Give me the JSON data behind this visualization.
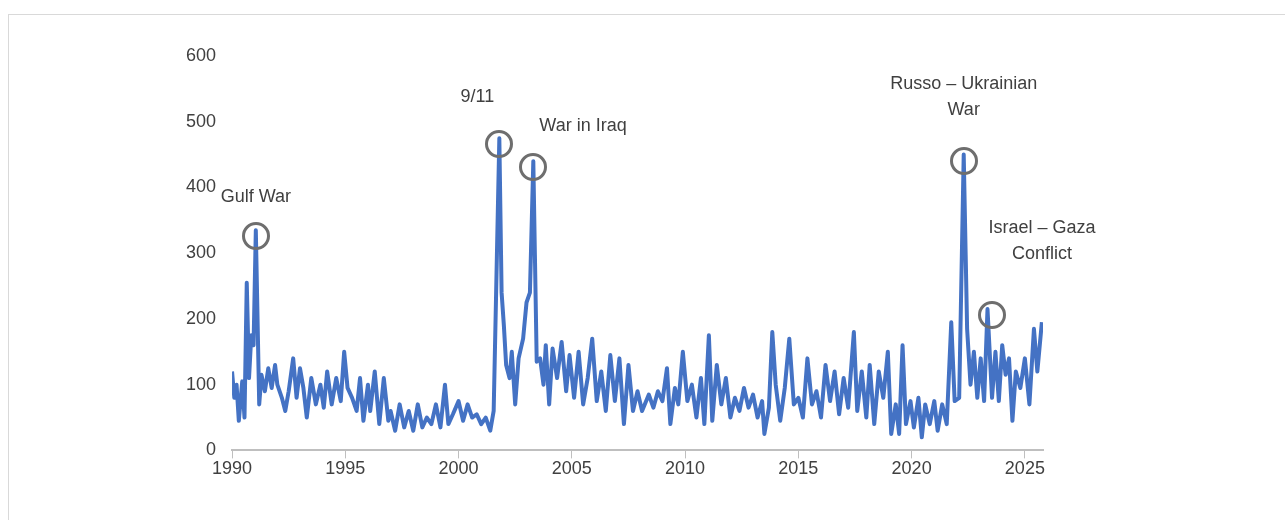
{
  "chart_data": {
    "type": "line",
    "x": [
      1990.0,
      1990.1,
      1990.2,
      1990.3,
      1990.45,
      1990.55,
      1990.65,
      1990.75,
      1990.85,
      1990.95,
      1991.05,
      1991.2,
      1991.3,
      1991.45,
      1991.6,
      1991.75,
      1991.9,
      1992.0,
      1992.2,
      1992.35,
      1992.5,
      1992.7,
      1992.85,
      1993.0,
      1993.15,
      1993.3,
      1993.5,
      1993.7,
      1993.9,
      1994.05,
      1994.2,
      1994.4,
      1994.6,
      1994.8,
      1994.95,
      1995.1,
      1995.3,
      1995.5,
      1995.65,
      1995.8,
      1996.0,
      1996.1,
      1996.3,
      1996.5,
      1996.7,
      1996.9,
      1997.0,
      1997.2,
      1997.4,
      1997.6,
      1997.8,
      1998.0,
      1998.2,
      1998.4,
      1998.6,
      1998.8,
      1999.0,
      1999.2,
      1999.4,
      1999.55,
      1999.75,
      2000.0,
      2000.2,
      2000.4,
      2000.6,
      2000.8,
      2001.0,
      2001.2,
      2001.4,
      2001.55,
      2001.8,
      2001.9,
      2002.0,
      2002.1,
      2002.25,
      2002.35,
      2002.5,
      2002.65,
      2002.85,
      2003.0,
      2003.15,
      2003.3,
      2003.45,
      2003.6,
      2003.75,
      2003.85,
      2004.0,
      2004.15,
      2004.35,
      2004.55,
      2004.75,
      2004.9,
      2005.1,
      2005.3,
      2005.5,
      2005.7,
      2005.9,
      2006.1,
      2006.3,
      2006.5,
      2006.7,
      2006.9,
      2007.1,
      2007.3,
      2007.5,
      2007.7,
      2007.9,
      2008.1,
      2008.4,
      2008.6,
      2008.8,
      2009.0,
      2009.2,
      2009.35,
      2009.55,
      2009.7,
      2009.9,
      2010.1,
      2010.3,
      2010.5,
      2010.7,
      2010.85,
      2011.05,
      2011.2,
      2011.4,
      2011.6,
      2011.8,
      2012.0,
      2012.2,
      2012.4,
      2012.6,
      2012.8,
      2013.0,
      2013.2,
      2013.4,
      2013.5,
      2013.7,
      2013.85,
      2014.0,
      2014.2,
      2014.4,
      2014.6,
      2014.8,
      2015.0,
      2015.2,
      2015.4,
      2015.6,
      2015.8,
      2016.0,
      2016.2,
      2016.4,
      2016.6,
      2016.8,
      2017.0,
      2017.2,
      2017.45,
      2017.6,
      2017.8,
      2018.0,
      2018.15,
      2018.35,
      2018.55,
      2018.75,
      2018.95,
      2019.1,
      2019.3,
      2019.45,
      2019.6,
      2019.75,
      2019.95,
      2020.1,
      2020.3,
      2020.45,
      2020.6,
      2020.8,
      2021.0,
      2021.15,
      2021.35,
      2021.55,
      2021.75,
      2021.9,
      2022.1,
      2022.3,
      2022.45,
      2022.6,
      2022.75,
      2022.9,
      2023.05,
      2023.2,
      2023.35,
      2023.55,
      2023.7,
      2023.85,
      2024.0,
      2024.15,
      2024.3,
      2024.45,
      2024.6,
      2024.8,
      2025.0,
      2025.2,
      2025.4,
      2025.55,
      2025.75
    ],
    "series": [
      {
        "color": "#4472c4",
        "values": [
          120,
          80,
          100,
          45,
          105,
          50,
          255,
          110,
          175,
          160,
          335,
          70,
          115,
          90,
          125,
          95,
          130,
          100,
          80,
          60,
          90,
          140,
          80,
          125,
          95,
          50,
          110,
          70,
          100,
          65,
          120,
          70,
          110,
          75,
          150,
          95,
          80,
          60,
          110,
          45,
          100,
          60,
          120,
          40,
          110,
          45,
          60,
          30,
          70,
          35,
          60,
          30,
          70,
          35,
          50,
          40,
          70,
          35,
          100,
          40,
          55,
          75,
          45,
          70,
          50,
          55,
          40,
          50,
          30,
          60,
          475,
          240,
          190,
          130,
          110,
          150,
          70,
          140,
          170,
          225,
          240,
          440,
          135,
          140,
          100,
          160,
          70,
          155,
          110,
          165,
          90,
          145,
          80,
          150,
          70,
          110,
          170,
          75,
          120,
          60,
          145,
          75,
          140,
          40,
          130,
          60,
          90,
          60,
          85,
          65,
          90,
          75,
          125,
          40,
          95,
          70,
          150,
          75,
          100,
          50,
          110,
          40,
          175,
          45,
          130,
          70,
          110,
          50,
          80,
          60,
          95,
          65,
          85,
          50,
          75,
          25,
          65,
          180,
          100,
          45,
          95,
          170,
          70,
          80,
          50,
          140,
          70,
          90,
          50,
          130,
          75,
          120,
          55,
          110,
          65,
          180,
          60,
          120,
          50,
          130,
          40,
          120,
          80,
          150,
          25,
          70,
          25,
          160,
          40,
          75,
          35,
          80,
          20,
          70,
          40,
          75,
          30,
          70,
          40,
          195,
          75,
          80,
          450,
          185,
          100,
          150,
          80,
          140,
          75,
          215,
          80,
          150,
          75,
          160,
          115,
          140,
          45,
          120,
          95,
          140,
          70,
          185,
          120,
          195
        ]
      }
    ],
    "xlim": [
      1990,
      2025.8
    ],
    "xticks": [
      1990,
      1995,
      2000,
      2005,
      2010,
      2015,
      2020,
      2025
    ],
    "ylim": [
      0,
      600
    ],
    "yticks": [
      0,
      100,
      200,
      300,
      400,
      500,
      600
    ],
    "grid": false,
    "legend": false,
    "marker": "none",
    "line_style": "solid",
    "annotations": [
      {
        "text": "Gulf War",
        "x": 1991.05,
        "y": 335
      },
      {
        "text": "9/11",
        "x": 2001.8,
        "y": 475
      },
      {
        "text": "War in Iraq",
        "x": 2003.3,
        "y": 440
      },
      {
        "text": "Russo – Ukrainian War",
        "x": 2022.3,
        "y": 450
      },
      {
        "text": "Israel – Gaza Conflict",
        "x": 2023.55,
        "y": 215
      }
    ]
  }
}
